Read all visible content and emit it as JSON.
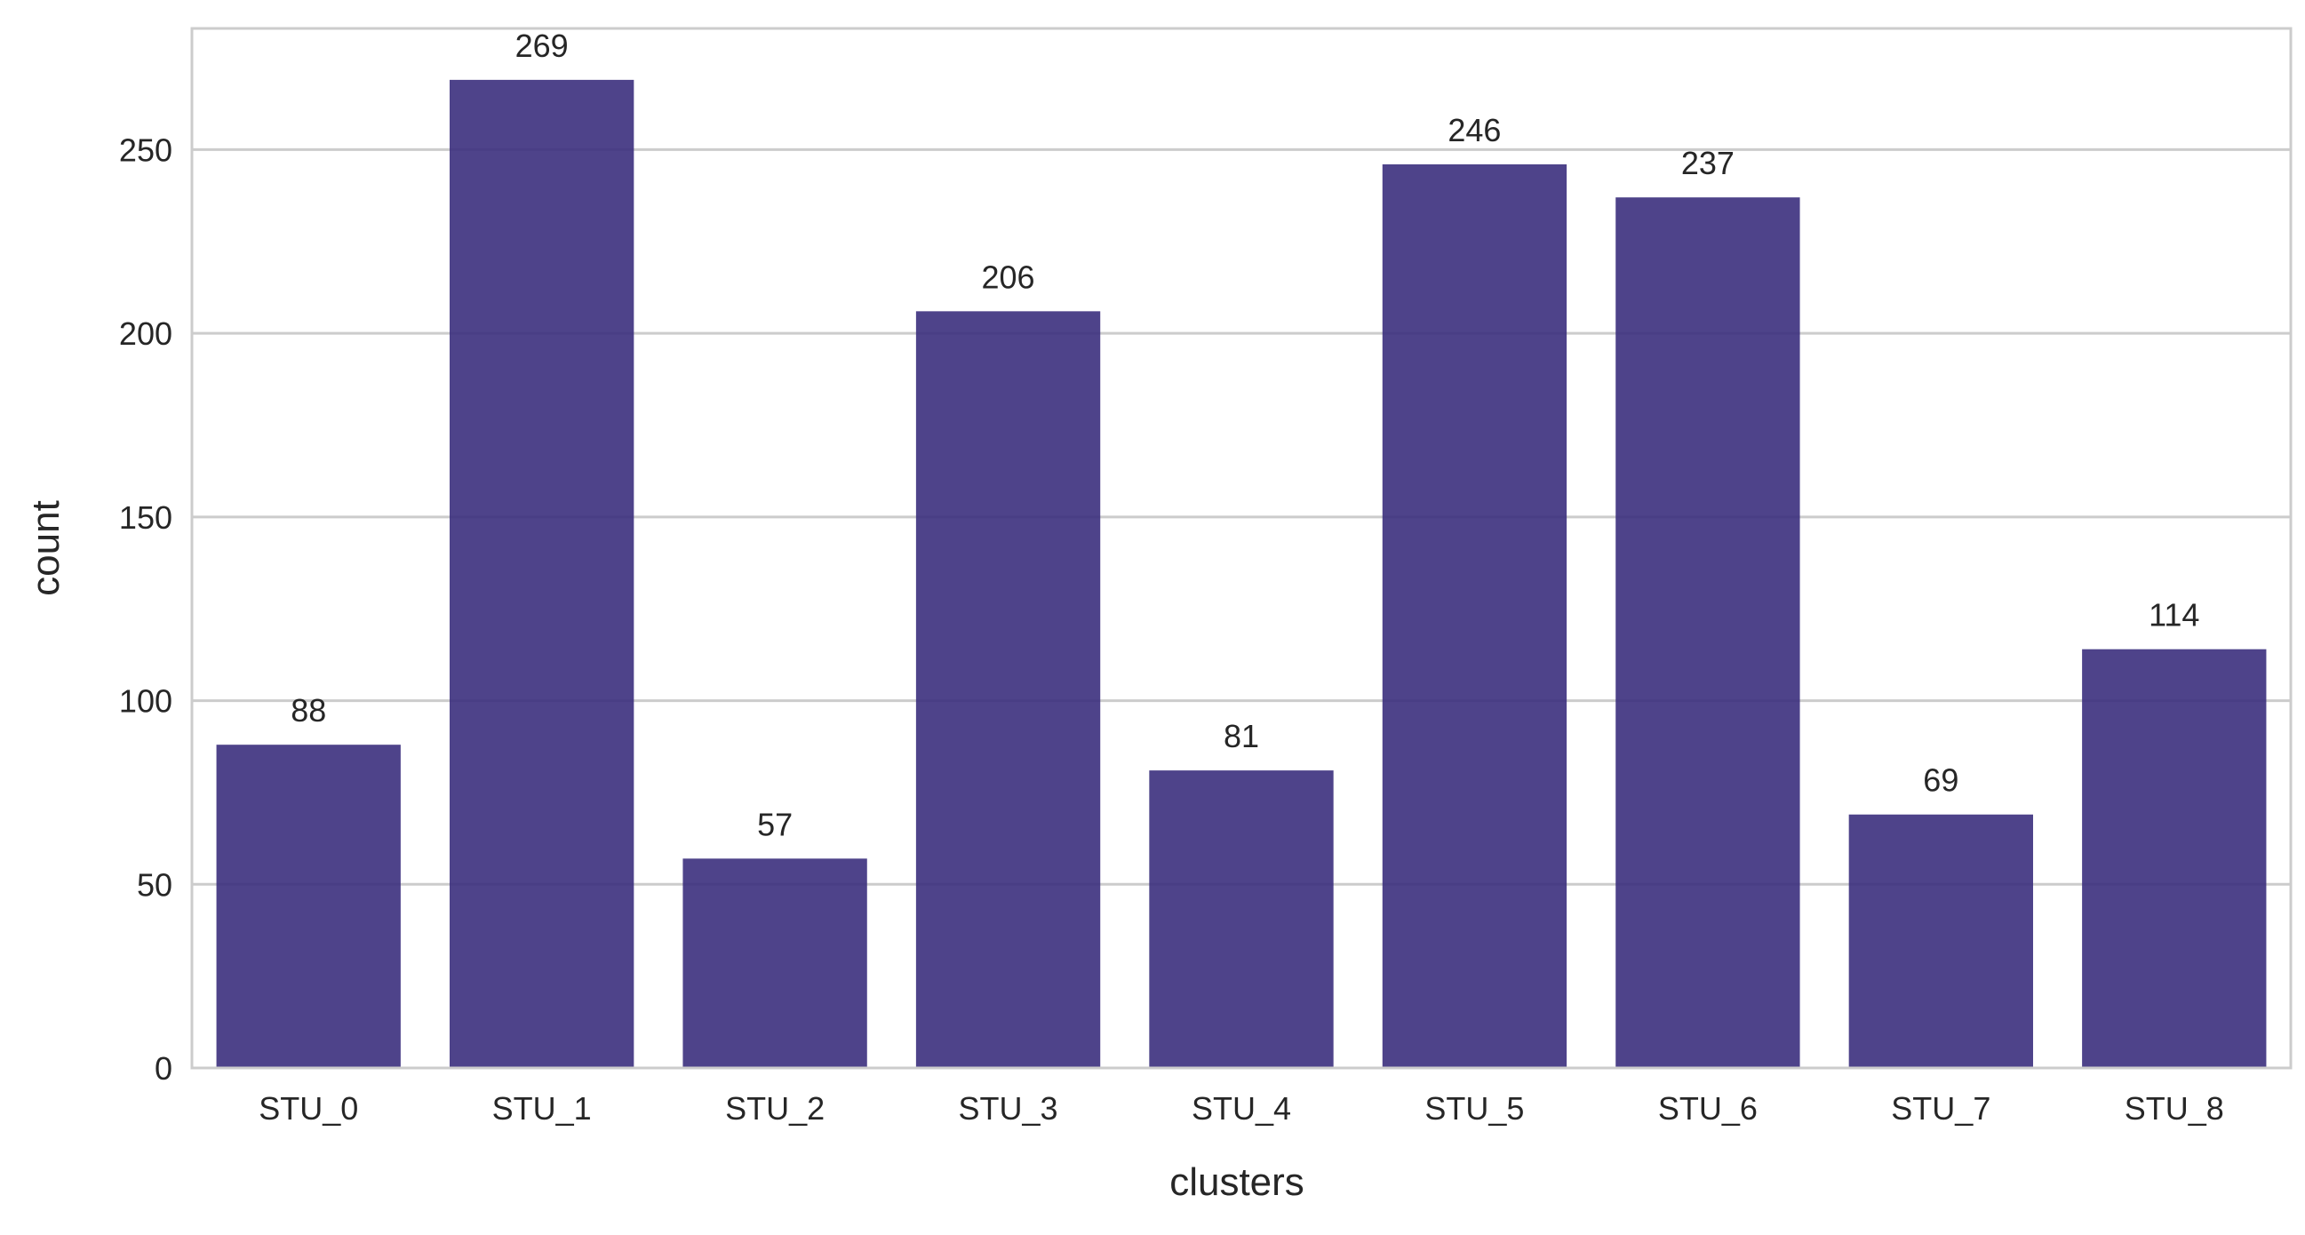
{
  "chart_data": {
    "type": "bar",
    "title": "",
    "xlabel": "clusters",
    "ylabel": "count",
    "categories": [
      "STU_0",
      "STU_1",
      "STU_2",
      "STU_3",
      "STU_4",
      "STU_5",
      "STU_6",
      "STU_7",
      "STU_8"
    ],
    "values": [
      88,
      269,
      57,
      206,
      81,
      246,
      237,
      69,
      114
    ],
    "data_labels": [
      "88",
      "269",
      "57",
      "206",
      "81",
      "246",
      "237",
      "69",
      "114"
    ],
    "ylim": [
      0,
      283
    ],
    "yticks": [
      0,
      50,
      100,
      150,
      200,
      250
    ],
    "ytick_labels": [
      "0",
      "50",
      "100",
      "150",
      "200",
      "250"
    ],
    "grid": true,
    "legend": "none",
    "bar_color": "#3b2f7d"
  }
}
